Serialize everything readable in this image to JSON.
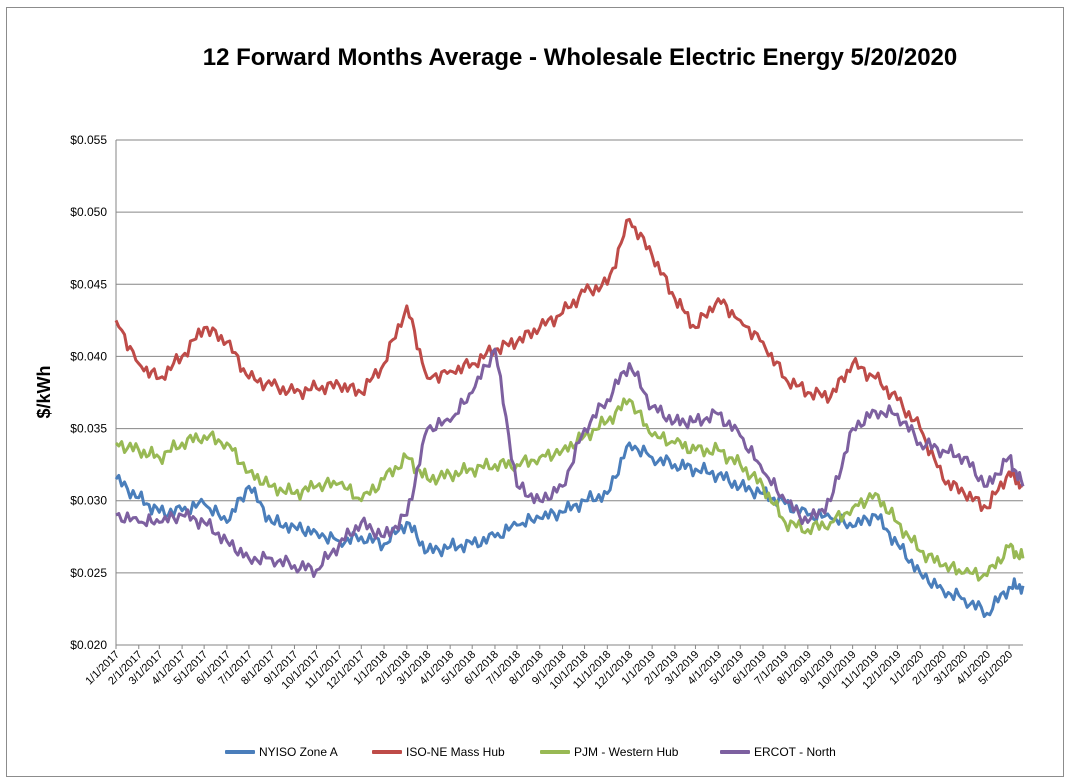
{
  "chart_data": {
    "type": "line",
    "title": "12 Forward Months Average - Wholesale Electric Energy 5/20/2020",
    "xlabel": "",
    "ylabel": "$/kWh",
    "ylim": [
      0.02,
      0.055
    ],
    "yticks": [
      "$0.020",
      "$0.025",
      "$0.030",
      "$0.035",
      "$0.040",
      "$0.045",
      "$0.050",
      "$0.055"
    ],
    "xlim": [
      "1/1/2017",
      "5/20/2020"
    ],
    "xticks": [
      "1/1/2017",
      "2/1/2017",
      "3/1/2017",
      "4/1/2017",
      "5/1/2017",
      "6/1/2017",
      "7/1/2017",
      "8/1/2017",
      "9/1/2017",
      "10/1/2017",
      "11/1/2017",
      "12/1/2017",
      "1/1/2018",
      "2/1/2018",
      "3/1/2018",
      "4/1/2018",
      "5/1/2018",
      "6/1/2018",
      "7/1/2018",
      "8/1/2018",
      "9/1/2018",
      "10/1/2018",
      "11/1/2018",
      "12/1/2018",
      "1/1/2019",
      "2/1/2019",
      "3/1/2019",
      "4/1/2019",
      "5/1/2019",
      "6/1/2019",
      "7/1/2019",
      "8/1/2019",
      "9/1/2019",
      "10/1/2019",
      "11/1/2019",
      "12/1/2019",
      "1/1/2020",
      "2/1/2020",
      "3/1/2020",
      "4/1/2020",
      "5/1/2020"
    ],
    "grid": true,
    "legend_position": "bottom",
    "x": [
      "1/1/2017",
      "2/1/2017",
      "3/1/2017",
      "4/1/2017",
      "5/1/2017",
      "6/1/2017",
      "7/1/2017",
      "8/1/2017",
      "9/1/2017",
      "10/1/2017",
      "11/1/2017",
      "12/1/2017",
      "1/1/2018",
      "2/1/2018",
      "3/1/2018",
      "4/1/2018",
      "5/1/2018",
      "6/1/2018",
      "7/1/2018",
      "8/1/2018",
      "9/1/2018",
      "10/1/2018",
      "11/1/2018",
      "12/1/2018",
      "1/1/2019",
      "2/1/2019",
      "3/1/2019",
      "4/1/2019",
      "5/1/2019",
      "6/1/2019",
      "7/1/2019",
      "8/1/2019",
      "9/1/2019",
      "10/1/2019",
      "11/1/2019",
      "12/1/2019",
      "1/1/2020",
      "2/1/2020",
      "3/1/2020",
      "4/1/2020",
      "5/1/2020",
      "5/20/2020"
    ],
    "series": [
      {
        "name": "NYISO Zone A",
        "color": "#4a7ebb",
        "values": [
          0.0315,
          0.0302,
          0.0292,
          0.0293,
          0.0298,
          0.0285,
          0.031,
          0.0285,
          0.0282,
          0.0278,
          0.0272,
          0.0275,
          0.027,
          0.0285,
          0.0265,
          0.0268,
          0.027,
          0.0275,
          0.0283,
          0.0288,
          0.0292,
          0.03,
          0.0305,
          0.034,
          0.033,
          0.0325,
          0.0322,
          0.0318,
          0.031,
          0.0305,
          0.0298,
          0.029,
          0.0288,
          0.0282,
          0.029,
          0.027,
          0.025,
          0.0238,
          0.0232,
          0.0222,
          0.024,
          0.0241
        ]
      },
      {
        "name": "ISO-NE Mass Hub",
        "color": "#be4b48",
        "values": [
          0.0425,
          0.0395,
          0.0385,
          0.04,
          0.042,
          0.041,
          0.0385,
          0.038,
          0.0375,
          0.0378,
          0.038,
          0.0375,
          0.0395,
          0.0435,
          0.0385,
          0.039,
          0.0395,
          0.0405,
          0.041,
          0.042,
          0.043,
          0.0445,
          0.045,
          0.0495,
          0.047,
          0.044,
          0.042,
          0.044,
          0.0425,
          0.041,
          0.0385,
          0.0375,
          0.0372,
          0.0395,
          0.0385,
          0.037,
          0.035,
          0.0315,
          0.0305,
          0.0295,
          0.032,
          0.031
        ]
      },
      {
        "name": "PJM - Western Hub",
        "color": "#98b954",
        "values": [
          0.034,
          0.0335,
          0.033,
          0.034,
          0.0345,
          0.034,
          0.032,
          0.031,
          0.0305,
          0.031,
          0.0312,
          0.03,
          0.0315,
          0.033,
          0.0315,
          0.0318,
          0.0322,
          0.0325,
          0.0325,
          0.033,
          0.0335,
          0.0345,
          0.0355,
          0.037,
          0.0345,
          0.034,
          0.0335,
          0.0335,
          0.0325,
          0.031,
          0.0285,
          0.028,
          0.0285,
          0.0295,
          0.0305,
          0.0285,
          0.0265,
          0.0255,
          0.025,
          0.0248,
          0.0268,
          0.026
        ]
      },
      {
        "name": "ERCOT - North",
        "color": "#7d60a0",
        "values": [
          0.029,
          0.0285,
          0.0285,
          0.029,
          0.0285,
          0.0272,
          0.026,
          0.026,
          0.0255,
          0.0252,
          0.027,
          0.0285,
          0.0275,
          0.029,
          0.035,
          0.0355,
          0.0375,
          0.0405,
          0.031,
          0.03,
          0.031,
          0.035,
          0.037,
          0.0395,
          0.0365,
          0.0355,
          0.0355,
          0.036,
          0.0345,
          0.032,
          0.03,
          0.0285,
          0.03,
          0.035,
          0.0362,
          0.036,
          0.034,
          0.0335,
          0.033,
          0.031,
          0.033,
          0.031
        ]
      }
    ]
  }
}
